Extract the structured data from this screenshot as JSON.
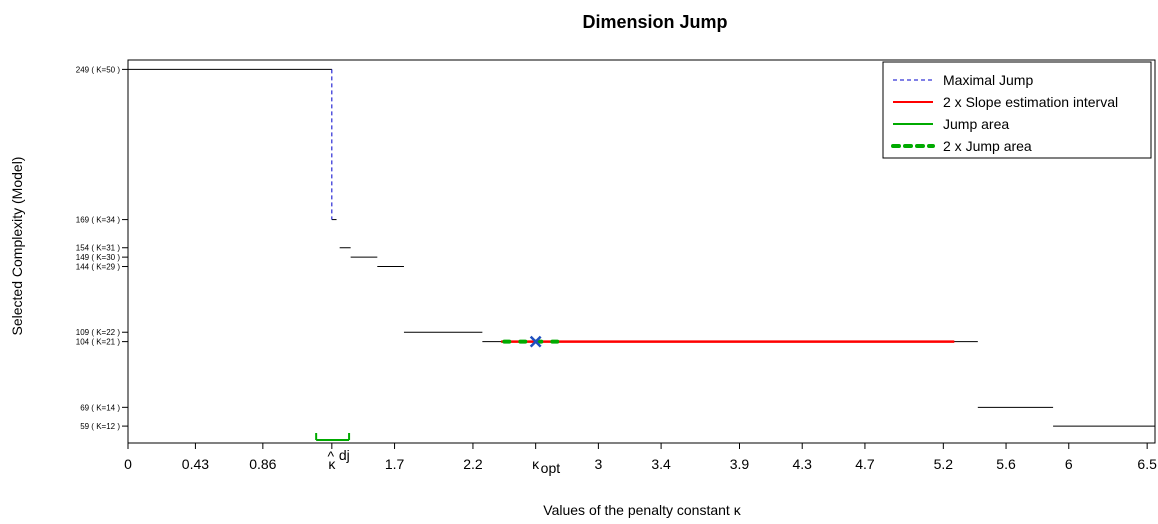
{
  "chart_data": {
    "type": "line",
    "title": "Dimension Jump",
    "xlabel": "Values of the penalty constant κ",
    "ylabel": "Selected Complexity (Model)",
    "xlim": [
      0,
      6.55
    ],
    "ylim": [
      50,
      254
    ],
    "x_ticks": [
      {
        "value": 0,
        "label": "0"
      },
      {
        "value": 0.43,
        "label": "0.43"
      },
      {
        "value": 0.86,
        "label": "0.86"
      },
      {
        "value": 1.3,
        "label": "κ",
        "hat": "^",
        "sup": "dj"
      },
      {
        "value": 1.7,
        "label": "1.7"
      },
      {
        "value": 2.2,
        "label": "2.2"
      },
      {
        "value": 2.6,
        "label": "κ",
        "sub": "opt"
      },
      {
        "value": 3.0,
        "label": "3"
      },
      {
        "value": 3.4,
        "label": "3.4"
      },
      {
        "value": 3.9,
        "label": "3.9"
      },
      {
        "value": 4.3,
        "label": "4.3"
      },
      {
        "value": 4.7,
        "label": "4.7"
      },
      {
        "value": 5.2,
        "label": "5.2"
      },
      {
        "value": 5.6,
        "label": "5.6"
      },
      {
        "value": 6.0,
        "label": "6"
      },
      {
        "value": 6.5,
        "label": "6.5"
      }
    ],
    "y_ticks": [
      {
        "value": 249,
        "label": "249 ( K=50 )"
      },
      {
        "value": 169,
        "label": "169 ( K=34 )"
      },
      {
        "value": 154,
        "label": "154 ( K=31 )"
      },
      {
        "value": 149,
        "label": "149 ( K=30 )"
      },
      {
        "value": 144,
        "label": "144 ( K=29 )"
      },
      {
        "value": 109,
        "label": "109 ( K=22 )"
      },
      {
        "value": 104,
        "label": "104 ( K=21 )"
      },
      {
        "value": 69,
        "label": "69 ( K=14 )"
      },
      {
        "value": 59,
        "label": "59 ( K=12 )"
      }
    ],
    "step_series": [
      {
        "x0": 0.0,
        "x1": 1.3,
        "y": 249
      },
      {
        "x0": 1.3,
        "x1": 1.33,
        "y": 169
      },
      {
        "x0": 1.35,
        "x1": 1.42,
        "y": 154
      },
      {
        "x0": 1.42,
        "x1": 1.59,
        "y": 149
      },
      {
        "x0": 1.59,
        "x1": 1.76,
        "y": 144
      },
      {
        "x0": 1.76,
        "x1": 2.26,
        "y": 109
      },
      {
        "x0": 2.26,
        "x1": 5.42,
        "y": 104
      },
      {
        "x0": 5.42,
        "x1": 5.9,
        "y": 69
      },
      {
        "x0": 5.9,
        "x1": 6.55,
        "y": 59
      }
    ],
    "maximal_jump": {
      "x": 1.3,
      "y_from": 249,
      "y_to": 169,
      "color": "#0000cc"
    },
    "slope_interval": {
      "x0": 2.38,
      "x1": 5.27,
      "y": 104,
      "color": "#ff0000"
    },
    "jump_area": {
      "x0": 1.2,
      "x1": 1.41,
      "color": "#00aa00"
    },
    "double_jump_area": {
      "x0": 2.4,
      "x1": 2.8,
      "y": 104,
      "color": "#00aa00"
    },
    "kappa_opt_marker": {
      "x": 2.6,
      "y": 104,
      "color": "#1f4fbf"
    },
    "legend": {
      "placement": "top-right",
      "entries": [
        {
          "label": "Maximal Jump",
          "color": "#0000cc",
          "style": "dashed"
        },
        {
          "label": "2 x Slope estimation interval",
          "color": "#ff0000",
          "style": "solid"
        },
        {
          "label": "Jump area",
          "color": "#00aa00",
          "style": "solid"
        },
        {
          "label": "2 x Jump area",
          "color": "#00aa00",
          "style": "dotted-thick"
        }
      ]
    },
    "grid": false
  }
}
